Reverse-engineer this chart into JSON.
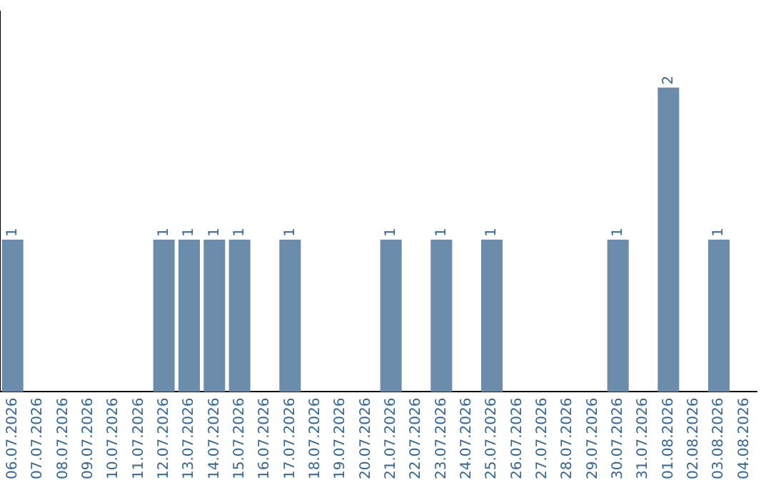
{
  "chart_data": {
    "type": "bar",
    "categories": [
      "06.07.2026",
      "07.07.2026",
      "08.07.2026",
      "09.07.2026",
      "10.07.2026",
      "11.07.2026",
      "12.07.2026",
      "13.07.2026",
      "14.07.2026",
      "15.07.2026",
      "16.07.2026",
      "17.07.2026",
      "18.07.2026",
      "19.07.2026",
      "20.07.2026",
      "21.07.2026",
      "22.07.2026",
      "23.07.2026",
      "24.07.2026",
      "25.07.2026",
      "26.07.2026",
      "27.07.2026",
      "28.07.2026",
      "29.07.2026",
      "30.07.2026",
      "31.07.2026",
      "01.08.2026",
      "02.08.2026",
      "03.08.2026",
      "04.08.2026"
    ],
    "values": [
      1,
      0,
      0,
      0,
      0,
      0,
      1,
      1,
      1,
      1,
      0,
      1,
      0,
      0,
      0,
      1,
      0,
      1,
      0,
      1,
      0,
      0,
      0,
      0,
      1,
      0,
      2,
      0,
      1,
      0
    ],
    "value_labels": [
      "1",
      null,
      null,
      null,
      null,
      null,
      "1",
      "1",
      "1",
      "1",
      null,
      "1",
      null,
      null,
      null,
      "1",
      null,
      "1",
      null,
      "1",
      null,
      null,
      null,
      null,
      "1",
      null,
      "2",
      null,
      "1",
      null
    ],
    "color": "#6b8cab",
    "grid": false,
    "legend": false,
    "tick_labels": "x"
  }
}
